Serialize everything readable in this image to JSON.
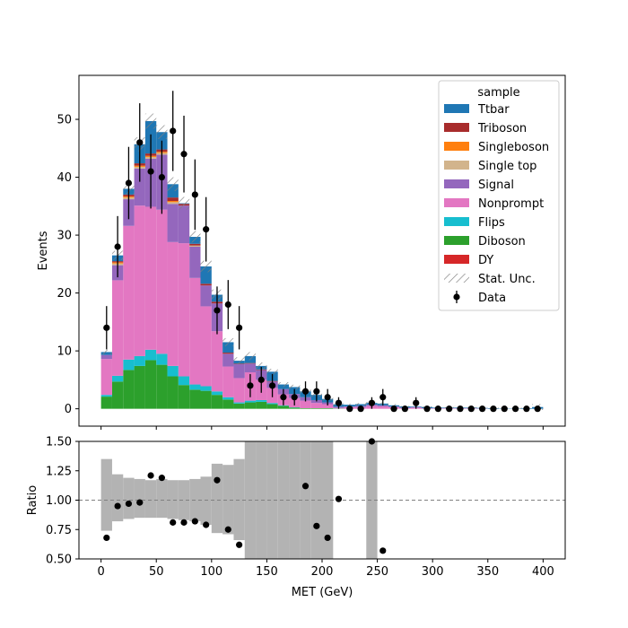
{
  "chart_data": [
    {
      "type": "bar",
      "stacked": true,
      "histogram": true,
      "bin_width": 10,
      "x": [
        5,
        15,
        25,
        35,
        45,
        55,
        65,
        75,
        85,
        95,
        105,
        115,
        125,
        135,
        145,
        155,
        165,
        175,
        185,
        195,
        205,
        215,
        225,
        235,
        245,
        255,
        265,
        275,
        285,
        295,
        305,
        315,
        325,
        335,
        345,
        355,
        365,
        375,
        385,
        395
      ],
      "xlim": [
        -20,
        420
      ],
      "ylim": [
        -3,
        57.6
      ],
      "ylabel": "Events",
      "yticks": [
        0,
        10,
        20,
        30,
        40,
        50
      ],
      "legend_title": "sample",
      "legend_position": "top-right",
      "series": [
        {
          "name": "DY",
          "color": "#d62728",
          "values": [
            0,
            0,
            0,
            0,
            0,
            0,
            0,
            0,
            0,
            0,
            0,
            0,
            0,
            0,
            0,
            0,
            0,
            0,
            0,
            0,
            0,
            0,
            0,
            0,
            0,
            0,
            0,
            0,
            0,
            0,
            0,
            0,
            0,
            0,
            0,
            0,
            0,
            0,
            0,
            0
          ]
        },
        {
          "name": "Diboson",
          "color": "#2ca02c",
          "values": [
            2.1,
            4.7,
            6.7,
            7.4,
            8.4,
            7.6,
            5.6,
            4.1,
            3.3,
            3.1,
            2.4,
            1.6,
            0.9,
            1.1,
            1.2,
            0.8,
            0.5,
            0.2,
            0.1,
            0.1,
            0.1,
            0.05,
            0,
            0,
            0,
            0,
            0,
            0,
            0,
            0,
            0,
            0,
            0,
            0,
            0,
            0,
            0,
            0,
            0,
            0
          ]
        },
        {
          "name": "Flips",
          "color": "#17becf",
          "values": [
            0.3,
            1.0,
            1.8,
            1.7,
            1.8,
            1.9,
            1.8,
            1.5,
            0.9,
            0.8,
            0.6,
            0.4,
            0.2,
            0.3,
            0.3,
            0.2,
            0.1,
            0.05,
            0,
            0,
            0,
            0,
            0,
            0,
            0,
            0,
            0,
            0,
            0,
            0,
            0,
            0,
            0,
            0,
            0,
            0,
            0,
            0,
            0,
            0
          ]
        },
        {
          "name": "Nonprompt",
          "color": "#e377c2",
          "values": [
            6.2,
            16.5,
            23.1,
            26.0,
            24.7,
            24.9,
            21.4,
            23.0,
            18.4,
            13.8,
            10.4,
            5.3,
            4.2,
            4.9,
            3.5,
            2.6,
            1.9,
            1.6,
            1.3,
            0.9,
            0.7,
            0.1,
            0.3,
            0.3,
            0.5,
            0.4,
            0.3,
            0.1,
            0.2,
            0.05,
            0.05,
            0.05,
            0.05,
            0.05,
            0.05,
            0,
            0,
            0,
            0,
            0
          ]
        },
        {
          "name": "Signal",
          "color": "#9467bd",
          "values": [
            0.7,
            2.6,
            4.6,
            6.4,
            8.3,
            9.5,
            6.6,
            6.5,
            5.4,
            3.6,
            4.8,
            2.2,
            2.4,
            1.5,
            1.7,
            1.1,
            0.9,
            0.7,
            0.6,
            0.5,
            0.3,
            0.2,
            0.1,
            0.2,
            0.2,
            0.2,
            0.1,
            0.1,
            0.1,
            0.05,
            0.05,
            0.05,
            0.05,
            0.05,
            0,
            0,
            0,
            0,
            0,
            0
          ]
        },
        {
          "name": "Single top",
          "color": "#d2b48c",
          "values": [
            0,
            0.3,
            0.3,
            0.3,
            0.3,
            0.3,
            0.3,
            0,
            0.2,
            0,
            0,
            0,
            0,
            0,
            0,
            0,
            0,
            0,
            0,
            0,
            0,
            0,
            0,
            0,
            0,
            0,
            0,
            0,
            0,
            0,
            0,
            0,
            0,
            0,
            0,
            0,
            0,
            0,
            0,
            0
          ]
        },
        {
          "name": "Singleboson",
          "color": "#ff7f0e",
          "values": [
            0,
            0.2,
            0.2,
            0.2,
            0.2,
            0.2,
            0.2,
            0,
            0,
            0,
            0,
            0,
            0,
            0,
            0,
            0,
            0,
            0,
            0,
            0,
            0,
            0,
            0,
            0,
            0,
            0,
            0,
            0,
            0,
            0,
            0,
            0,
            0,
            0,
            0,
            0,
            0,
            0,
            0,
            0
          ]
        },
        {
          "name": "Triboson",
          "color": "#a82c2c",
          "values": [
            0,
            0.2,
            0.3,
            0.4,
            0.4,
            0.4,
            0.6,
            0.3,
            0.3,
            0.3,
            0.3,
            0.2,
            0.1,
            0.1,
            0.1,
            0.1,
            0,
            0,
            0,
            0,
            0,
            0,
            0,
            0,
            0,
            0,
            0,
            0,
            0,
            0,
            0,
            0,
            0,
            0,
            0,
            0,
            0,
            0,
            0,
            0
          ]
        },
        {
          "name": "Ttbar",
          "color": "#1f77b4",
          "values": [
            0.5,
            1.0,
            1.0,
            3.3,
            5.6,
            3.0,
            2.3,
            0.1,
            1.2,
            3.0,
            1.2,
            1.8,
            0.5,
            1.2,
            0.6,
            1.6,
            0.8,
            1.2,
            1.0,
            0.9,
            0.6,
            0.4,
            0.3,
            0.3,
            0.3,
            0.3,
            0.2,
            0.2,
            0.1,
            0.2,
            0.1,
            0.1,
            0.1,
            0.1,
            0.1,
            0.1,
            0.05,
            0.05,
            0.1,
            0.3
          ]
        }
      ],
      "stat_unc": {
        "name": "Stat. Unc.",
        "half_width": [
          0.4,
          0.8,
          1.0,
          1.2,
          1.3,
          1.2,
          1.2,
          1.1,
          1.0,
          1.0,
          0.9,
          0.7,
          0.6,
          0.7,
          0.6,
          0.5,
          0.4,
          0.4,
          0.3,
          0.3,
          0.3,
          0.2,
          0.2,
          0.2,
          0.2,
          0.2,
          0.2,
          0.1,
          0.1,
          0.1,
          0.1,
          0.1,
          0.3,
          0.1,
          0.1,
          0.1,
          0.1,
          0.1,
          0.1,
          0.5
        ]
      },
      "data_points": {
        "name": "Data",
        "x": [
          5,
          15,
          25,
          35,
          45,
          55,
          65,
          75,
          85,
          95,
          105,
          115,
          125,
          135,
          145,
          155,
          165,
          175,
          185,
          195,
          205,
          215,
          225,
          235,
          245,
          255,
          265,
          275,
          285,
          295,
          305,
          315,
          325,
          335,
          345,
          355,
          365,
          375,
          385,
          395
        ],
        "y": [
          14,
          28,
          39,
          46,
          41,
          40,
          48,
          44,
          37,
          31,
          17,
          18,
          14,
          4,
          5,
          4,
          2,
          2,
          3,
          3,
          2,
          1,
          0,
          0,
          1,
          2,
          0,
          0,
          1,
          0,
          0,
          0,
          0,
          0,
          0,
          0,
          0,
          0,
          0,
          0
        ]
      }
    },
    {
      "type": "scatter",
      "xlabel": "MET (GeV)",
      "ylabel": "Ratio",
      "xlim": [
        -20,
        420
      ],
      "ylim": [
        0.5,
        1.5
      ],
      "xticks": [
        0,
        50,
        100,
        150,
        200,
        250,
        300,
        350,
        400
      ],
      "yticks": [
        0.5,
        0.75,
        1.0,
        1.25,
        1.5
      ],
      "ytick_labels": [
        "0.50",
        "0.75",
        "1.00",
        "1.25",
        "1.50"
      ],
      "reference_line": 1.0,
      "unc_band": {
        "x": [
          5,
          15,
          25,
          35,
          45,
          55,
          65,
          75,
          85,
          95,
          105,
          115,
          125,
          135,
          145,
          155,
          165,
          175,
          185,
          195,
          205,
          245
        ],
        "low": [
          0.74,
          0.82,
          0.84,
          0.85,
          0.85,
          0.85,
          0.84,
          0.83,
          0.82,
          0.79,
          0.72,
          0.71,
          0.66,
          0.5,
          0.5,
          0.5,
          0.5,
          0.5,
          0.5,
          0.5,
          0.5,
          0.5
        ],
        "high": [
          1.35,
          1.22,
          1.19,
          1.18,
          1.17,
          1.18,
          1.17,
          1.17,
          1.18,
          1.2,
          1.31,
          1.3,
          1.35,
          1.5,
          1.5,
          1.5,
          1.5,
          1.5,
          1.5,
          1.5,
          1.5,
          1.5
        ]
      },
      "points": {
        "x": [
          5,
          15,
          25,
          35,
          45,
          55,
          65,
          75,
          85,
          95,
          105,
          115,
          125,
          185,
          195,
          205,
          215,
          245,
          255
        ],
        "y": [
          0.68,
          0.95,
          0.97,
          0.98,
          1.21,
          1.19,
          0.81,
          0.81,
          0.82,
          0.79,
          1.17,
          0.75,
          0.62,
          1.12,
          0.78,
          0.68,
          1.01,
          1.5,
          0.57
        ]
      }
    }
  ]
}
